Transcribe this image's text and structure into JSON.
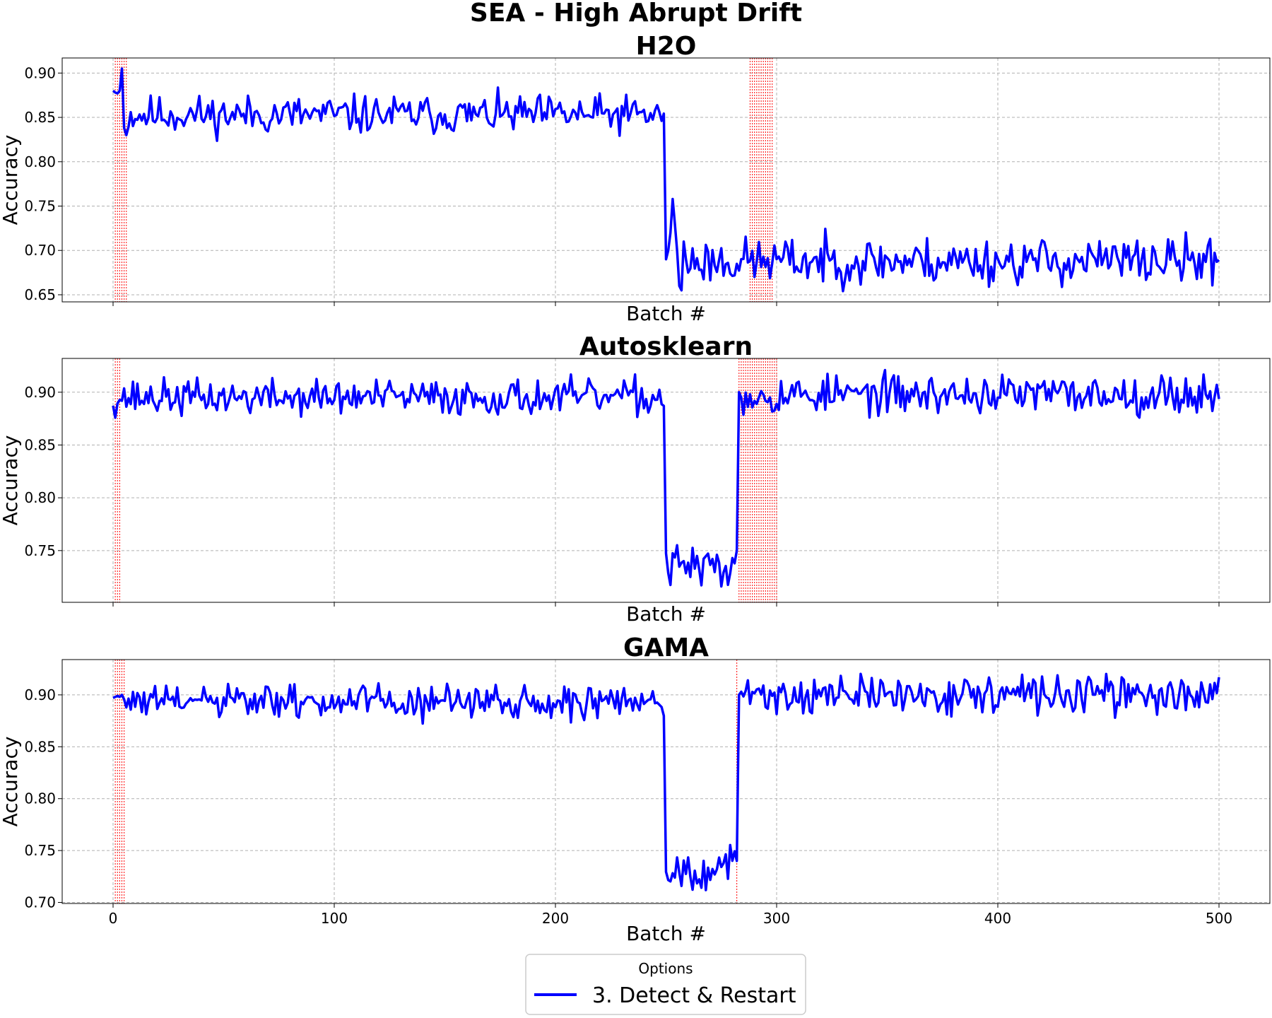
{
  "chart_data": {
    "type": "line",
    "title": "SEA - High Abrupt Drift",
    "legend": {
      "title": "Options",
      "placement": "bottom-center",
      "entries": [
        "3. Detect & Restart"
      ]
    },
    "series_color": "#0000ff",
    "drift_marker_color": "#ff0000",
    "grid": true,
    "xlim": [
      -23,
      523
    ],
    "x_ticks": [
      0,
      100,
      200,
      300,
      400,
      500
    ],
    "x_tick_labels": [
      "0",
      "100",
      "200",
      "300",
      "400",
      "500"
    ],
    "panels": [
      {
        "title": "H2O",
        "xlabel": "Batch #",
        "ylabel": "Accuracy",
        "ylim": [
          0.642,
          0.917
        ],
        "y_ticks": [
          0.65,
          0.7,
          0.75,
          0.8,
          0.85,
          0.9
        ],
        "y_tick_labels": [
          "0.65",
          "0.70",
          "0.75",
          "0.80",
          "0.85",
          "0.90"
        ],
        "drift_batches": [
          1,
          2,
          3,
          4,
          5,
          6,
          288,
          289,
          290,
          291,
          292,
          293,
          294,
          295,
          296,
          297,
          298
        ],
        "segments": [
          {
            "from": 0,
            "to": 5,
            "anchors": [
              [
                0,
                0.88
              ],
              [
                1,
                0.878
              ],
              [
                2,
                0.877
              ],
              [
                3,
                0.88
              ],
              [
                4,
                0.905
              ],
              [
                5,
                0.838
              ],
              [
                6,
                0.83
              ]
            ]
          },
          {
            "from": 7,
            "to": 249,
            "mean": 0.853,
            "amp": 0.028,
            "seed": 11
          },
          {
            "from": 250,
            "to": 260,
            "anchors": [
              [
                250,
                0.69
              ],
              [
                251,
                0.7
              ],
              [
                252,
                0.72
              ],
              [
                253,
                0.758
              ],
              [
                254,
                0.73
              ],
              [
                255,
                0.7
              ],
              [
                256,
                0.66
              ],
              [
                257,
                0.655
              ],
              [
                258,
                0.71
              ],
              [
                259,
                0.69
              ],
              [
                260,
                0.675
              ]
            ]
          },
          {
            "from": 261,
            "to": 500,
            "mean": 0.688,
            "amp": 0.034,
            "seed": 23
          }
        ]
      },
      {
        "title": "Autosklearn",
        "xlabel": "Batch #",
        "ylabel": "Accuracy",
        "ylim": [
          0.701,
          0.932
        ],
        "y_ticks": [
          0.75,
          0.8,
          0.85,
          0.9
        ],
        "y_tick_labels": [
          "0.75",
          "0.80",
          "0.85",
          "0.90"
        ],
        "drift_batches": [
          1,
          2,
          3,
          283,
          284,
          285,
          286,
          287,
          288,
          289,
          290,
          291,
          292,
          293,
          294,
          295,
          296,
          297,
          298,
          299,
          300
        ],
        "segments": [
          {
            "from": 0,
            "to": 249,
            "mean": 0.895,
            "amp": 0.022,
            "seed": 37
          },
          {
            "from": 250,
            "to": 281,
            "mean": 0.735,
            "amp": 0.025,
            "seed": 41
          },
          {
            "from": 282,
            "to": 284,
            "anchors": [
              [
                282,
                0.75
              ],
              [
                283,
                0.9
              ],
              [
                284,
                0.895
              ]
            ]
          },
          {
            "from": 285,
            "to": 500,
            "mean": 0.898,
            "amp": 0.024,
            "seed": 53
          }
        ]
      },
      {
        "title": "GAMA",
        "xlabel": "Batch #",
        "ylabel": "Accuracy",
        "ylim": [
          0.699,
          0.934
        ],
        "y_ticks": [
          0.7,
          0.75,
          0.8,
          0.85,
          0.9
        ],
        "y_tick_labels": [
          "0.70",
          "0.75",
          "0.80",
          "0.85",
          "0.90"
        ],
        "drift_batches": [
          1,
          2,
          3,
          4,
          5,
          282
        ],
        "segments": [
          {
            "from": 0,
            "to": 4,
            "anchors": [
              [
                0,
                0.897
              ],
              [
                1,
                0.898
              ],
              [
                2,
                0.899
              ],
              [
                3,
                0.898
              ],
              [
                4,
                0.9
              ]
            ]
          },
          {
            "from": 5,
            "to": 249,
            "mean": 0.893,
            "amp": 0.022,
            "seed": 61
          },
          {
            "from": 250,
            "to": 281,
            "mean": 0.733,
            "amp": 0.025,
            "seed": 67
          },
          {
            "from": 282,
            "to": 284,
            "anchors": [
              [
                282,
                0.74
              ],
              [
                283,
                0.9
              ],
              [
                284,
                0.903
              ]
            ]
          },
          {
            "from": 285,
            "to": 500,
            "mean": 0.9,
            "amp": 0.024,
            "seed": 71
          }
        ]
      }
    ]
  }
}
